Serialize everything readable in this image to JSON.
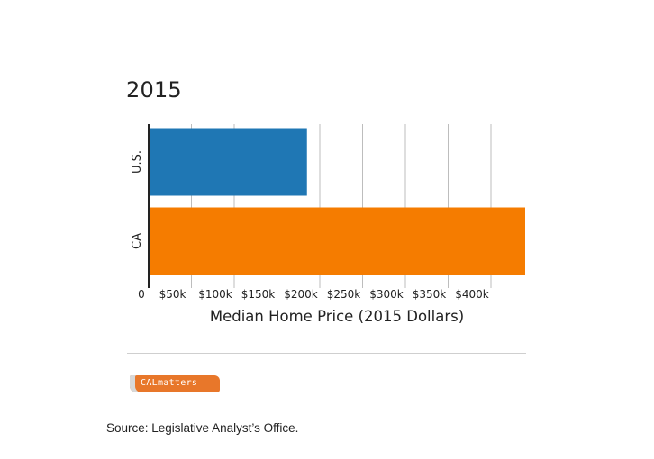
{
  "chart_data": {
    "type": "bar",
    "orientation": "horizontal",
    "title": "2015",
    "categories": [
      "U.S.",
      "CA"
    ],
    "values": [
      185000,
      440000
    ],
    "colors": [
      "#1f77b4",
      "#f57c00"
    ],
    "xlabel": "Median Home Price (2015 Dollars)",
    "ylabel": "",
    "xlim": [
      0,
      440000
    ],
    "x_ticks": [
      0,
      50000,
      100000,
      150000,
      200000,
      250000,
      300000,
      350000,
      400000
    ],
    "x_tick_labels": [
      "0",
      "$50k",
      "$100k",
      "$150k",
      "$200k",
      "$250k",
      "$300k",
      "$350k",
      "$400k"
    ],
    "grid": true
  },
  "divider": "",
  "logo": {
    "text": "CALmatters"
  },
  "source": "Source: Legislative Analyst’s Office."
}
